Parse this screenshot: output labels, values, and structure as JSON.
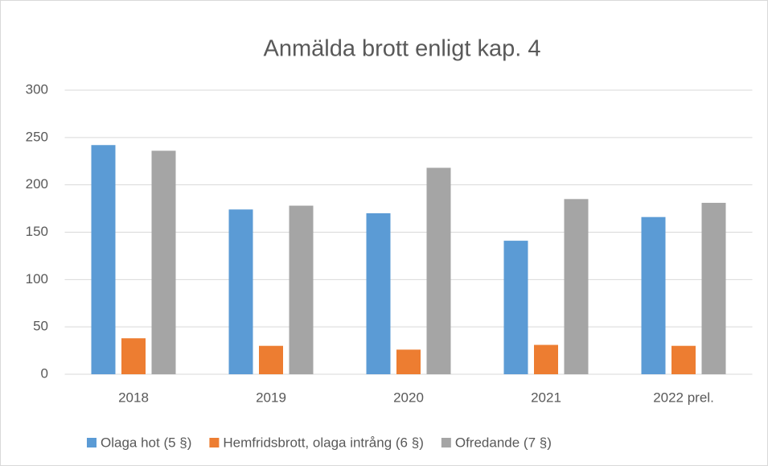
{
  "chart_data": {
    "type": "bar",
    "title": "Anmälda brott enligt kap. 4",
    "categories": [
      "2018",
      "2019",
      "2020",
      "2021",
      "2022 prel."
    ],
    "series": [
      {
        "name": "Olaga hot (5 §)",
        "color": "#5b9bd5",
        "values": [
          242,
          174,
          170,
          141,
          166
        ]
      },
      {
        "name": "Hemfridsbrott, olaga intrång (6 §)",
        "color": "#ed7d31",
        "values": [
          38,
          30,
          26,
          31,
          30
        ]
      },
      {
        "name": "Ofredande (7 §)",
        "color": "#a5a5a5",
        "values": [
          236,
          178,
          218,
          185,
          181
        ]
      }
    ],
    "ylim": [
      0,
      300
    ],
    "yticks": [
      0,
      50,
      100,
      150,
      200,
      250,
      300
    ],
    "grid": true,
    "legend": "bottom"
  }
}
